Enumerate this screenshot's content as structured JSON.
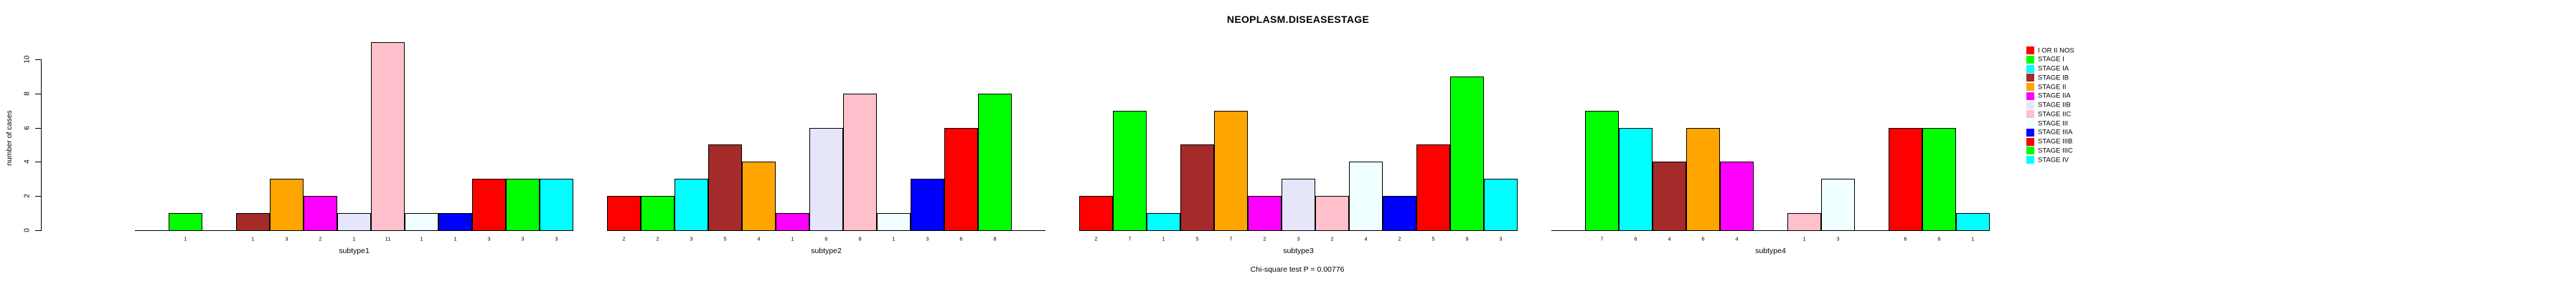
{
  "title": "NEOPLASM.DISEASESTAGE",
  "footnote": "Chi-square test P = 0.00776",
  "chart_data": {
    "type": "bar",
    "title": "NEOPLASM.DISEASESTAGE",
    "xlabel": "",
    "ylabel": "number of cases",
    "ylim": [
      0,
      10
    ],
    "yticks": [
      0,
      2,
      4,
      6,
      8,
      10
    ],
    "grid": false,
    "legend_position": "right",
    "categories": [
      "I OR II NOS",
      "STAGE I",
      "STAGE IA",
      "STAGE IB",
      "STAGE II",
      "STAGE IIA",
      "STAGE IIB",
      "STAGE IIC",
      "STAGE III",
      "STAGE IIIA",
      "STAGE IIIB",
      "STAGE IIIC",
      "STAGE IV"
    ],
    "category_colors": [
      "#FF0000",
      "#00FF00",
      "#00FFFF",
      "#A52A2A",
      "#FFA500",
      "#FF00FF",
      "#E6E6FA",
      "#FFC0CB",
      "#F0FFFF",
      "#0000FF",
      "#FF0000",
      "#00FF00",
      "#00FFFF"
    ],
    "series": [
      {
        "name": "subtype1",
        "values": [
          0,
          1,
          0,
          1,
          3,
          2,
          1,
          11,
          1,
          1,
          3,
          3,
          3
        ]
      },
      {
        "name": "subtype2",
        "values": [
          2,
          2,
          3,
          5,
          4,
          1,
          6,
          8,
          1,
          3,
          6,
          8,
          0
        ]
      },
      {
        "name": "subtype3",
        "values": [
          2,
          7,
          1,
          5,
          7,
          2,
          3,
          2,
          4,
          2,
          5,
          9,
          3
        ]
      },
      {
        "name": "subtype4",
        "values": [
          0,
          7,
          6,
          4,
          6,
          4,
          0,
          1,
          3,
          0,
          6,
          6,
          1
        ]
      }
    ],
    "bar_labels": "value shown under each non-zero bar",
    "footnote": "Chi-square test P = 0.00776"
  },
  "legend": {
    "items": [
      {
        "label": "I OR II NOS",
        "color": "#FF0000"
      },
      {
        "label": "STAGE I",
        "color": "#00FF00"
      },
      {
        "label": "STAGE IA",
        "color": "#00FFFF"
      },
      {
        "label": "STAGE IB",
        "color": "#A52A2A"
      },
      {
        "label": "STAGE II",
        "color": "#FFA500"
      },
      {
        "label": "STAGE IIA",
        "color": "#FF00FF"
      },
      {
        "label": "STAGE IIB",
        "color": "#E6E6FA"
      },
      {
        "label": "STAGE IIC",
        "color": "#FFC0CB"
      },
      {
        "label": "STAGE III",
        "color": "#F0FFFF"
      },
      {
        "label": "STAGE IIIA",
        "color": "#0000FF"
      },
      {
        "label": "STAGE IIIB",
        "color": "#FF0000"
      },
      {
        "label": "STAGE IIIC",
        "color": "#00FF00"
      },
      {
        "label": "STAGE IV",
        "color": "#00FFFF"
      }
    ]
  }
}
